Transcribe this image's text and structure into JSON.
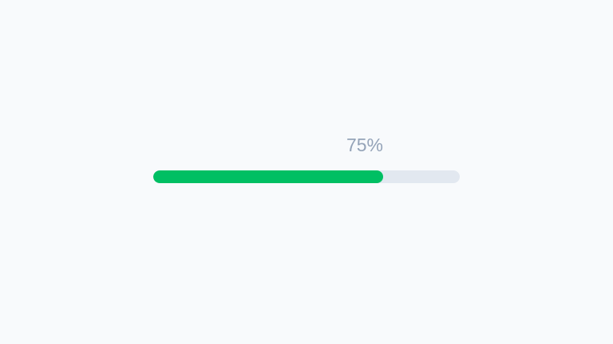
{
  "progress": {
    "label": "75%",
    "value_percent": 75,
    "colors": {
      "fill": "#00bf63",
      "track": "#e2e8f0",
      "label": "#94a3b8",
      "background": "#f8fafc"
    }
  }
}
